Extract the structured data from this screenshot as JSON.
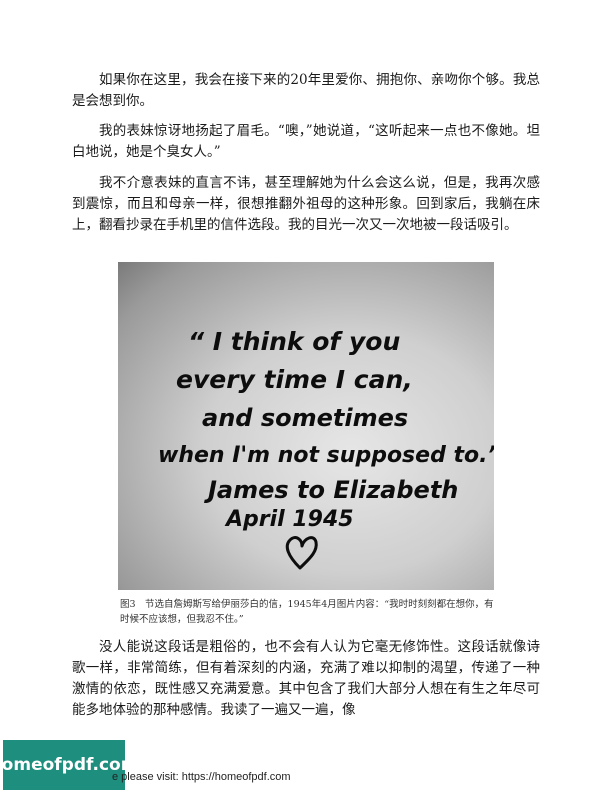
{
  "paragraphs": [
    "如果你在这里，我会在接下来的20年里爱你、拥抱你、亲吻你个够。我总是会想到你。",
    "我的表妹惊讶地扬起了眉毛。“噢，”她说道，“这听起来一点也不像她。坦白地说，她是个臭女人。”",
    "我不介意表妹的直言不讳，甚至理解她为什么会这么说，但是，我再次感到震惊，而且和母亲一样，很想推翻外祖母的这种形象。回到家后，我躺在床上，翻看抄录在手机里的信件选段。我的目光一次又一次地被一段话吸引。",
    "没人能说这段话是粗俗的，也不会有人认为它毫无修饰性。这段话就像诗歌一样，非常简练，但有着深刻的内涵，充满了难以抑制的渴望，传递了一种激情的依恋，既性感又充满爱意。其中包含了我们大部分人想在有生之年尽可能多地体验的那种感情。我读了一遍又一遍，像"
  ],
  "figure": {
    "handwriting_lines": [
      "“ I think of you",
      "every time I can,",
      "and sometimes",
      "when I'm not supposed to.”",
      "James to Elizabeth",
      "April 1945"
    ],
    "heart_icon": "heart-icon"
  },
  "caption": "图3　节选自詹姆斯写给伊丽莎白的信，1945年4月图片内容：“我时时刻刻都在想你，有时候不应该想，但我忍不住。”",
  "footer": {
    "badge": "homeofpdf.com",
    "text": "e please visit: https://homeofpdf.com"
  }
}
